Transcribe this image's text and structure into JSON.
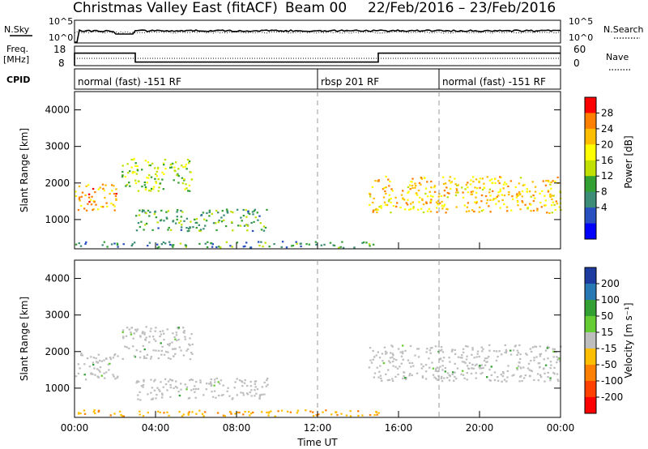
{
  "header": {
    "station": "Christmas Valley East (fitACF)",
    "beam": "Beam 00",
    "date_range": "22/Feb/2016 – 23/Feb/2016"
  },
  "strips": {
    "nsky_label": "N.Sky",
    "nsearch_label": "N.Search",
    "nsky_ticks": [
      "10^5",
      "10^0"
    ],
    "freq_label_1": "Freq.",
    "freq_label_2": "[MHz]",
    "freq_ticks": [
      "18",
      "8"
    ],
    "nave_label": "Nave",
    "nave_ticks": [
      "60",
      "0"
    ],
    "cpid_label": "CPID",
    "cpid_segments": [
      {
        "text": "normal (fast) -151 RF",
        "start_h": 0,
        "end_h": 12
      },
      {
        "text": "rbsp 201 RF",
        "start_h": 12,
        "end_h": 18
      },
      {
        "text": "normal (fast) -151 RF",
        "start_h": 18,
        "end_h": 24
      }
    ],
    "freq_segments": [
      {
        "start_h": 0,
        "end_h": 3,
        "mhz": 15
      },
      {
        "start_h": 3,
        "end_h": 15,
        "mhz": 10
      },
      {
        "start_h": 15,
        "end_h": 24,
        "mhz": 15
      }
    ]
  },
  "power_panel": {
    "ylabel": "Slant Range [km]",
    "cbar_label": "Power [dB]",
    "cbar_ticks": [
      "28",
      "24",
      "20",
      "16",
      "12",
      "8",
      "4"
    ],
    "cbar_colors": [
      "#ff0000",
      "#ff7f00",
      "#ffbf00",
      "#ffff00",
      "#bfe000",
      "#33a033",
      "#3c8c78",
      "#2850c0",
      "#0000ff"
    ]
  },
  "velocity_panel": {
    "ylabel": "Slant Range [km]",
    "cbar_label": "Velocity [m s⁻¹]",
    "cbar_ticks": [
      "200",
      "100",
      "50",
      "15",
      "-15",
      "-50",
      "-100",
      "-200"
    ],
    "cbar_colors": [
      "#1e3ca0",
      "#2878b4",
      "#33a033",
      "#66cc33",
      "#bebebe",
      "#ffbf00",
      "#ff8000",
      "#ff4000",
      "#ff0000"
    ]
  },
  "xaxis": {
    "label": "Time UT",
    "ticks": [
      "00:00",
      "04:00",
      "08:00",
      "12:00",
      "16:00",
      "20:00",
      "00:00"
    ]
  },
  "chart_data": [
    {
      "type": "heatmap",
      "title": "Power",
      "ylabel": "Slant Range [km]",
      "xlabel": "",
      "x_range_hours": [
        0,
        24
      ],
      "ylim": [
        200,
        4500
      ],
      "yticks": [
        1000,
        2000,
        3000,
        4000
      ],
      "colorbar": {
        "label": "Power [dB]",
        "ticks": [
          4,
          8,
          12,
          16,
          20,
          24,
          28
        ]
      },
      "echo_regions": [
        {
          "t_start": 0.0,
          "t_end": 2.1,
          "r_min": 1250,
          "r_max": 2000,
          "level_db": 22
        },
        {
          "t_start": 2.3,
          "t_end": 5.8,
          "r_min": 1800,
          "r_max": 2700,
          "level_db": 14
        },
        {
          "t_start": 3.0,
          "t_end": 9.5,
          "r_min": 700,
          "r_max": 1300,
          "level_db": 10
        },
        {
          "t_start": 0.0,
          "t_end": 15.0,
          "r_min": 250,
          "r_max": 420,
          "level_db": 8
        },
        {
          "t_start": 14.5,
          "t_end": 24.0,
          "r_min": 1200,
          "r_max": 2200,
          "level_db": 20
        }
      ]
    },
    {
      "type": "heatmap",
      "title": "Velocity",
      "ylabel": "Slant Range [km]",
      "xlabel": "Time UT",
      "x_range_hours": [
        0,
        24
      ],
      "ylim": [
        200,
        4500
      ],
      "yticks": [
        1000,
        2000,
        3000,
        4000
      ],
      "colorbar": {
        "label": "Velocity [m s⁻¹]",
        "ticks": [
          -200,
          -100,
          -50,
          -15,
          15,
          50,
          100,
          200
        ]
      },
      "echo_regions": [
        {
          "t_start": 0.0,
          "t_end": 2.1,
          "r_min": 1250,
          "r_max": 2000,
          "velocity": 0
        },
        {
          "t_start": 2.3,
          "t_end": 5.8,
          "r_min": 1800,
          "r_max": 2700,
          "velocity": 0
        },
        {
          "t_start": 3.0,
          "t_end": 9.5,
          "r_min": 700,
          "r_max": 1300,
          "velocity": 0
        },
        {
          "t_start": 0.0,
          "t_end": 15.0,
          "r_min": 250,
          "r_max": 420,
          "velocity": -30
        },
        {
          "t_start": 14.5,
          "t_end": 24.0,
          "r_min": 1200,
          "r_max": 2200,
          "velocity": 0
        }
      ]
    }
  ]
}
